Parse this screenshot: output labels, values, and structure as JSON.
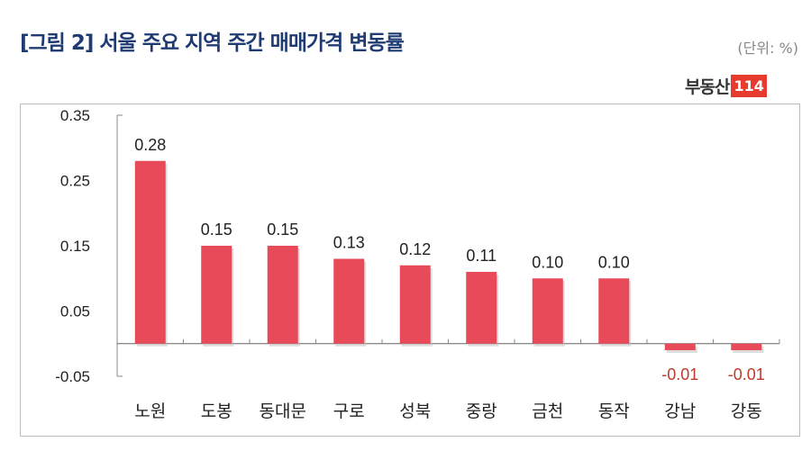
{
  "title": "[그림 2] 서울 주요 지역 주간 매매가격 변동률",
  "unit": "(단위: %)",
  "logo": {
    "text": "부동산",
    "badge": "114"
  },
  "chart_data": {
    "type": "bar",
    "title": "[그림 2] 서울 주요 지역 주간 매매가격 변동률",
    "categories": [
      "노원",
      "도봉",
      "동대문",
      "구로",
      "성북",
      "중랑",
      "금천",
      "동작",
      "강남",
      "강동"
    ],
    "values": [
      0.28,
      0.15,
      0.15,
      0.13,
      0.12,
      0.11,
      0.1,
      0.1,
      -0.01,
      -0.01
    ],
    "data_labels": [
      "0.28",
      "0.15",
      "0.15",
      "0.13",
      "0.12",
      "0.11",
      "0.10",
      "0.10",
      "-0.01",
      "-0.01"
    ],
    "yticks": [
      0.35,
      0.25,
      0.15,
      0.05,
      -0.05
    ],
    "ytick_labels": [
      "0.35",
      "0.25",
      "0.15",
      "0.05",
      "-0.05"
    ],
    "ylim": [
      -0.05,
      0.35
    ],
    "grid": false,
    "colors": {
      "bar": "#e84a5a",
      "positive_label": "#222222",
      "negative_label": "#c0392b"
    }
  }
}
